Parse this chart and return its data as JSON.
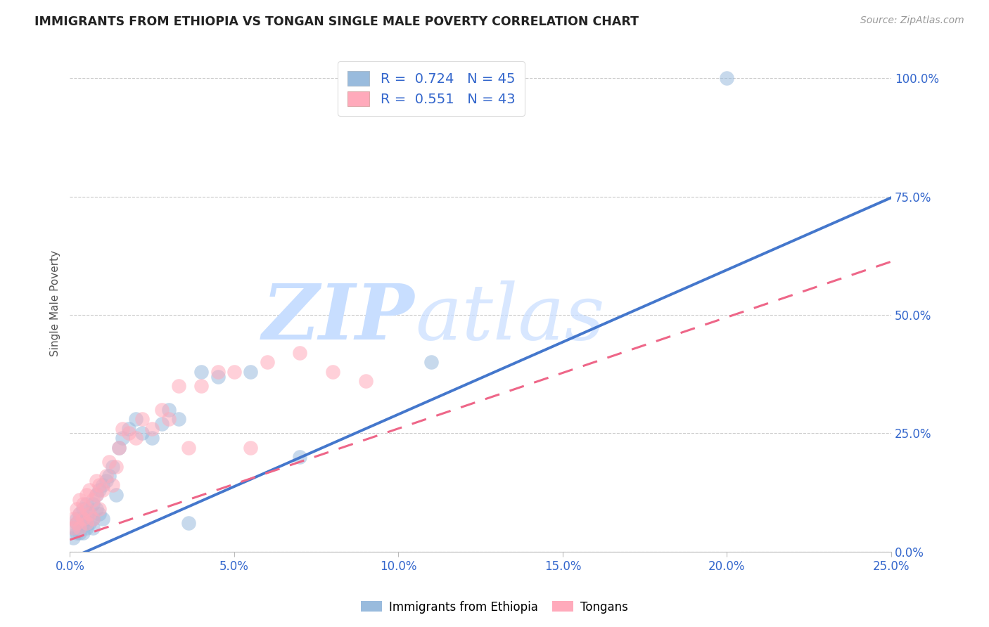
{
  "title": "IMMIGRANTS FROM ETHIOPIA VS TONGAN SINGLE MALE POVERTY CORRELATION CHART",
  "source": "Source: ZipAtlas.com",
  "ylabel_label": "Single Male Poverty",
  "legend_label1": "Immigrants from Ethiopia",
  "legend_label2": "Tongans",
  "R1": "0.724",
  "N1": "45",
  "R2": "0.551",
  "N2": "43",
  "color_blue": "#99BBDD",
  "color_pink": "#FFAABB",
  "color_blue_line": "#4477CC",
  "color_pink_line": "#EE6688",
  "xlim": [
    0.0,
    0.25
  ],
  "ylim": [
    0.0,
    1.05
  ],
  "xticks": [
    0.0,
    0.05,
    0.1,
    0.15,
    0.2,
    0.25
  ],
  "yticks": [
    0.0,
    0.25,
    0.5,
    0.75,
    1.0
  ],
  "eth_slope": 3.05,
  "eth_intercept": -0.015,
  "ton_slope": 2.35,
  "ton_intercept": 0.025,
  "ethiopia_x": [
    0.001,
    0.001,
    0.002,
    0.002,
    0.002,
    0.003,
    0.003,
    0.003,
    0.004,
    0.004,
    0.004,
    0.005,
    0.005,
    0.005,
    0.006,
    0.006,
    0.007,
    0.007,
    0.007,
    0.008,
    0.008,
    0.009,
    0.009,
    0.01,
    0.01,
    0.011,
    0.012,
    0.013,
    0.014,
    0.015,
    0.016,
    0.018,
    0.02,
    0.022,
    0.025,
    0.028,
    0.03,
    0.033,
    0.036,
    0.04,
    0.045,
    0.055,
    0.07,
    0.11,
    0.2
  ],
  "ethiopia_y": [
    0.05,
    0.03,
    0.06,
    0.04,
    0.07,
    0.05,
    0.08,
    0.04,
    0.06,
    0.09,
    0.04,
    0.07,
    0.1,
    0.05,
    0.08,
    0.06,
    0.07,
    0.1,
    0.05,
    0.09,
    0.12,
    0.08,
    0.13,
    0.14,
    0.07,
    0.15,
    0.16,
    0.18,
    0.12,
    0.22,
    0.24,
    0.26,
    0.28,
    0.25,
    0.24,
    0.27,
    0.3,
    0.28,
    0.06,
    0.38,
    0.37,
    0.38,
    0.2,
    0.4,
    1.0
  ],
  "tongan_x": [
    0.001,
    0.001,
    0.002,
    0.002,
    0.003,
    0.003,
    0.003,
    0.004,
    0.004,
    0.005,
    0.005,
    0.005,
    0.006,
    0.006,
    0.007,
    0.007,
    0.008,
    0.008,
    0.009,
    0.009,
    0.01,
    0.011,
    0.012,
    0.013,
    0.014,
    0.015,
    0.016,
    0.018,
    0.02,
    0.022,
    0.025,
    0.028,
    0.03,
    0.033,
    0.036,
    0.04,
    0.045,
    0.05,
    0.055,
    0.06,
    0.07,
    0.08,
    0.09
  ],
  "tongan_y": [
    0.05,
    0.07,
    0.06,
    0.09,
    0.05,
    0.08,
    0.11,
    0.07,
    0.1,
    0.06,
    0.09,
    0.12,
    0.08,
    0.13,
    0.07,
    0.11,
    0.12,
    0.15,
    0.09,
    0.14,
    0.13,
    0.16,
    0.19,
    0.14,
    0.18,
    0.22,
    0.26,
    0.25,
    0.24,
    0.28,
    0.26,
    0.3,
    0.28,
    0.35,
    0.22,
    0.35,
    0.38,
    0.38,
    0.22,
    0.4,
    0.42,
    0.38,
    0.36
  ]
}
